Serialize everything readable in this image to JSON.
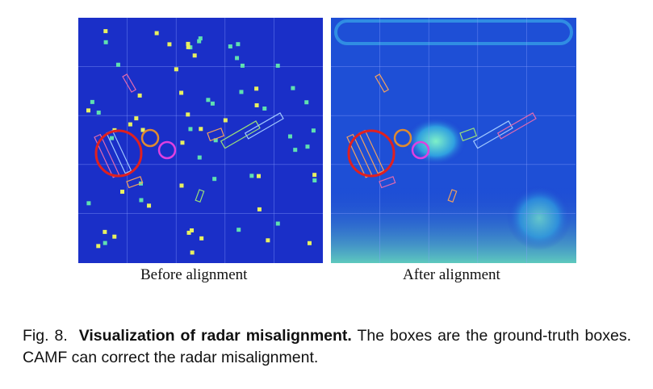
{
  "figure": {
    "panels": [
      {
        "label": "Before alignment"
      },
      {
        "label": "After alignment"
      }
    ],
    "caption": {
      "number": "Fig. 8.",
      "title": "Visualization of radar misalignment.",
      "text": "The boxes are the ground-truth boxes. CAMF can correct the radar misalignment."
    }
  }
}
